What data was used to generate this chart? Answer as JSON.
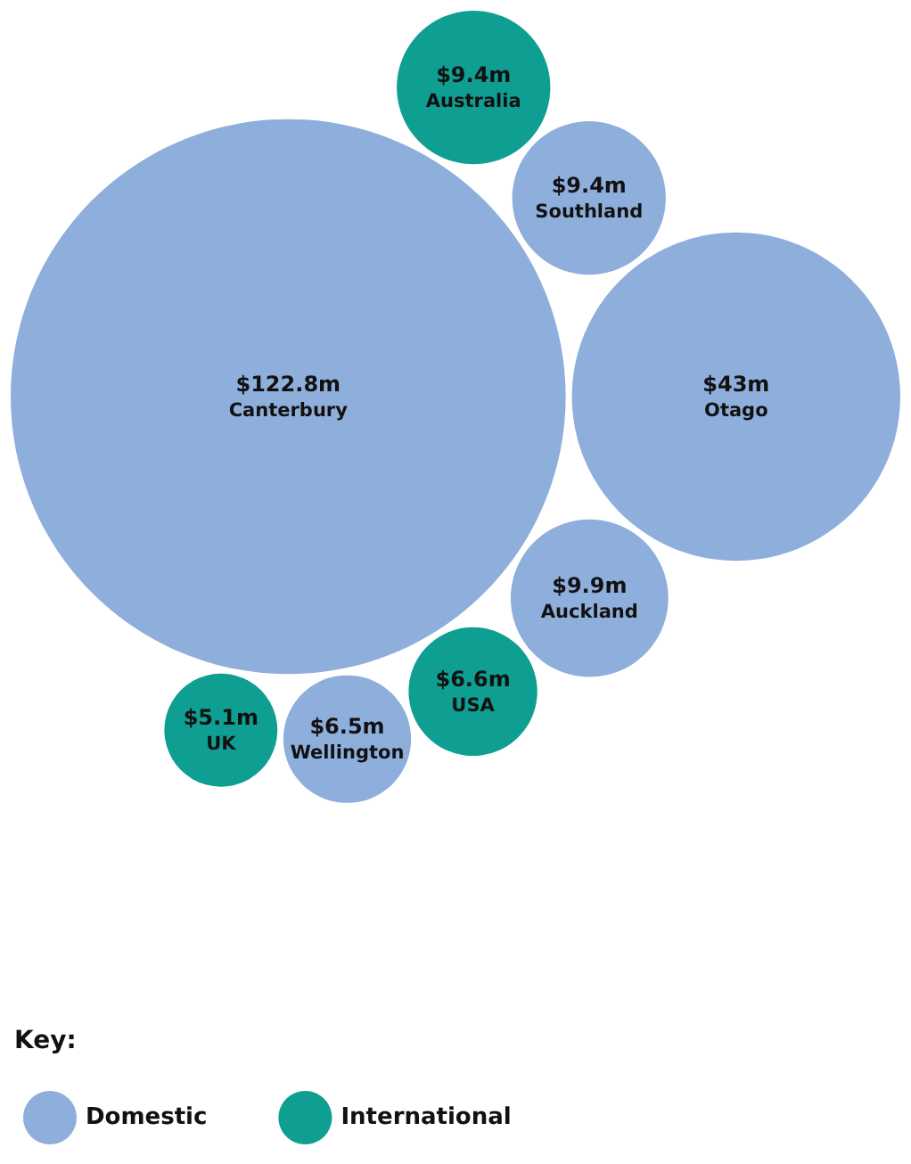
{
  "chart_data": {
    "type": "other",
    "legend_title": "Key:",
    "legend": "bottom left",
    "categories": [
      "Canterbury",
      "Otago",
      "Auckland",
      "Southland",
      "Wellington",
      "USA",
      "Australia",
      "UK"
    ],
    "series": [
      {
        "name": "Domestic",
        "color": "#8eaedc",
        "values": [
          122.8,
          43,
          9.9,
          9.4,
          6.5,
          null,
          null,
          null
        ],
        "value_labels": [
          "$122.8m",
          "$43m",
          "$9.9m",
          "$9.4m",
          "$6.5m",
          null,
          null,
          null
        ]
      },
      {
        "name": "International",
        "color": "#0f9e92",
        "values": [
          null,
          null,
          null,
          null,
          null,
          6.6,
          9.4,
          5.1
        ],
        "value_labels": [
          null,
          null,
          null,
          null,
          null,
          "$6.6m",
          "$9.4m",
          "$5.1m"
        ]
      }
    ]
  }
}
